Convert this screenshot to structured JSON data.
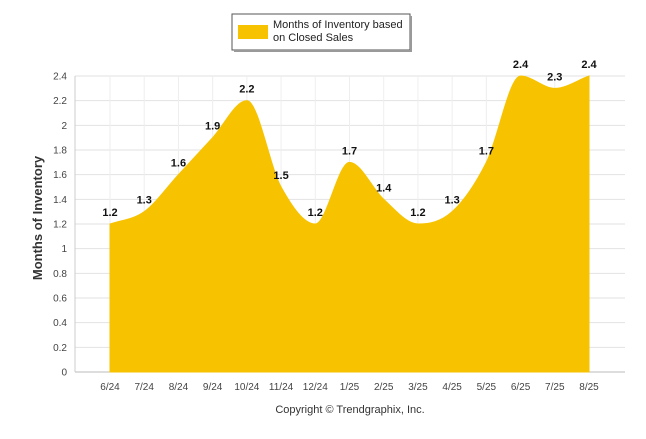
{
  "chart_data": {
    "type": "area",
    "categories": [
      "6/24",
      "7/24",
      "8/24",
      "9/24",
      "10/24",
      "11/24",
      "12/24",
      "1/25",
      "2/25",
      "3/25",
      "4/25",
      "5/25",
      "6/25",
      "7/25",
      "8/25"
    ],
    "series": [
      {
        "name": "Months of Inventory based on Closed Sales",
        "values": [
          1.2,
          1.3,
          1.6,
          1.9,
          2.2,
          1.5,
          1.2,
          1.7,
          1.4,
          1.2,
          1.3,
          1.7,
          2.4,
          2.3,
          2.4
        ],
        "color": "#F7C200"
      }
    ],
    "value_labels": [
      "1.2",
      "1.3",
      "1.6",
      "1.9",
      "2.2",
      "1.5",
      "1.2",
      "1.7",
      "1.4",
      "1.2",
      "1.3",
      "1.7",
      "2.4",
      "2.3",
      "2.4"
    ],
    "ylabel": "Months of Inventory",
    "xlabel": "",
    "ylim": [
      0,
      2.4
    ],
    "y_ticks": [
      "0",
      "0.2",
      "0.4",
      "0.6",
      "0.8",
      "1",
      "1.2",
      "1.4",
      "1.6",
      "1.8",
      "2",
      "2.2",
      "2.4"
    ],
    "grid": true,
    "legend": {
      "position": "top-center",
      "lines": [
        "Months of Inventory based",
        "on Closed Sales"
      ]
    }
  },
  "footer": {
    "copyright": "Copyright © Trendgraphix, Inc."
  },
  "colors": {
    "area": "#F7C200",
    "grid": "#e2e2e2",
    "axis": "#cccccc"
  }
}
